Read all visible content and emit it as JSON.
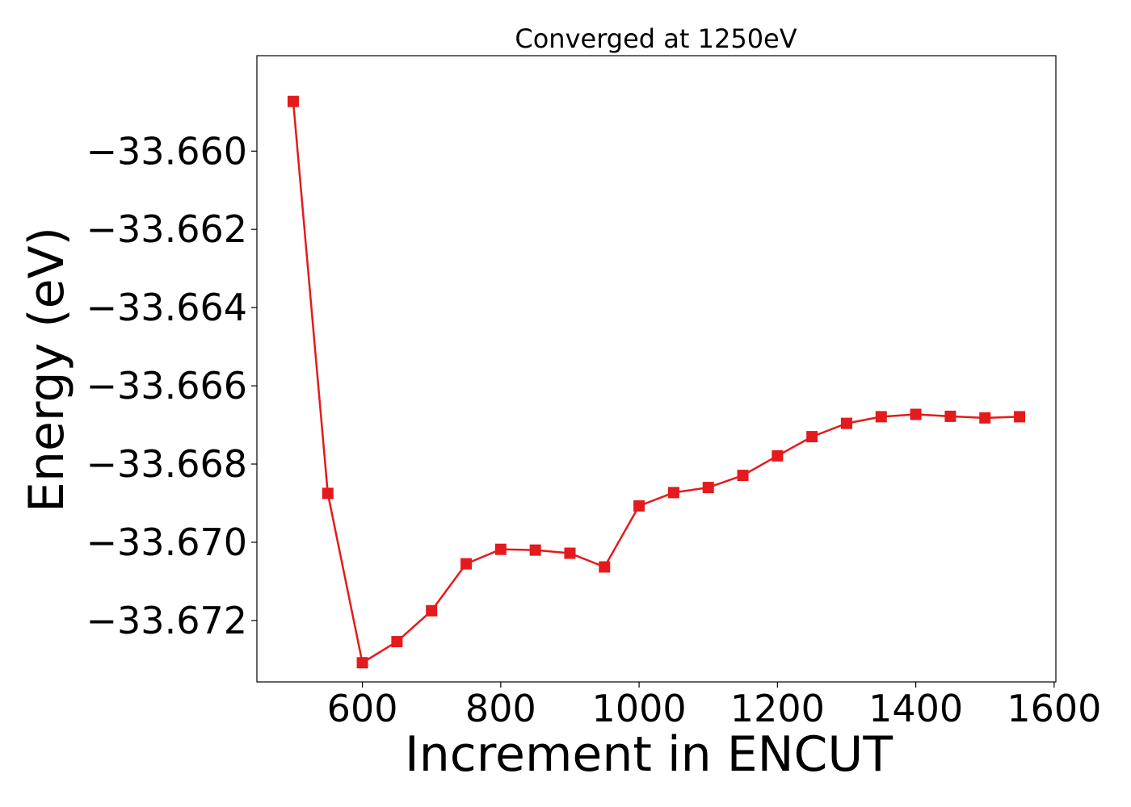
{
  "chart_data": {
    "type": "line",
    "title": "Converged at 1250eV",
    "xlabel": "Increment in ENCUT",
    "ylabel": "Energy (eV)",
    "xlim": [
      447.5,
      1602.5
    ],
    "ylim": [
      -33.67357,
      -33.65756
    ],
    "xticks": [
      600,
      800,
      1000,
      1200,
      1400,
      1600
    ],
    "xtick_labels": [
      "600",
      "800",
      "1000",
      "1200",
      "1400",
      "1600"
    ],
    "yticks": [
      -33.66,
      -33.662,
      -33.664,
      -33.666,
      -33.668,
      -33.67,
      -33.672
    ],
    "ytick_labels": [
      "−33.660",
      "−33.662",
      "−33.664",
      "−33.666",
      "−33.668",
      "−33.670",
      "−33.672"
    ],
    "grid": false,
    "legend": "none",
    "series": [
      {
        "color": "#e41a1c",
        "marker": "square",
        "x": [
          500,
          550,
          600,
          650,
          700,
          750,
          800,
          850,
          900,
          950,
          1000,
          1050,
          1100,
          1150,
          1200,
          1250,
          1300,
          1350,
          1400,
          1450,
          1500,
          1550
        ],
        "y": [
          -33.65873,
          -33.66875,
          -33.67308,
          -33.67254,
          -33.67175,
          -33.67055,
          -33.67018,
          -33.6702,
          -33.67028,
          -33.67063,
          -33.66907,
          -33.66873,
          -33.6686,
          -33.66829,
          -33.66779,
          -33.6673,
          -33.66696,
          -33.66679,
          -33.66673,
          -33.66678,
          -33.66682,
          -33.66679
        ]
      }
    ]
  }
}
